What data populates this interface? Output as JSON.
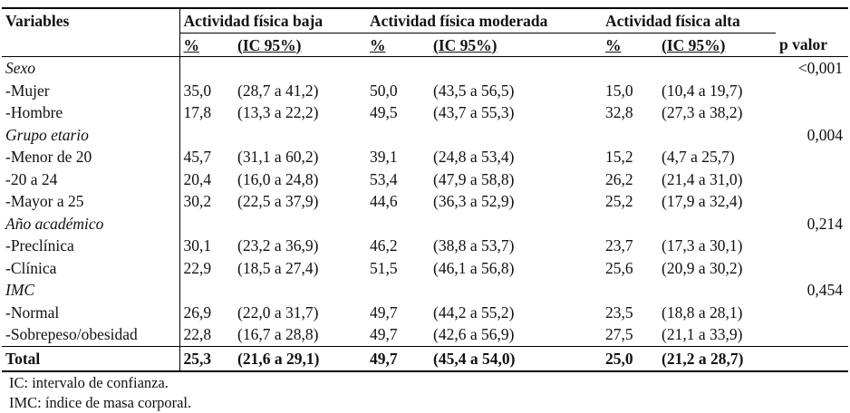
{
  "header": {
    "variables": "Variables",
    "groups": [
      "Actividad física baja",
      "Actividad física moderada",
      "Actividad física alta"
    ],
    "pct": "%",
    "ci": "(IC 95%)",
    "pvalue": "p valor"
  },
  "rows": [
    {
      "label": "Sexo",
      "type": "cat",
      "p": "<0,001"
    },
    {
      "label": "-Mujer",
      "type": "sub",
      "v": [
        "35,0",
        "(28,7 a 41,2)",
        "50,0",
        "(43,5 a 56,5)",
        "15,0",
        "(10,4 a 19,7)"
      ]
    },
    {
      "label": "-Hombre",
      "type": "sub",
      "v": [
        "17,8",
        "(13,3 a 22,2)",
        "49,5",
        "(43,7 a 55,3)",
        "32,8",
        "(27,3 a 38,2)"
      ]
    },
    {
      "label": "Grupo etario",
      "type": "cat",
      "p": "0,004"
    },
    {
      "label": "-Menor de 20",
      "type": "sub",
      "v": [
        "45,7",
        "(31,1 a 60,2)",
        "39,1",
        "(24,8 a 53,4)",
        "15,2",
        "(4,7 a 25,7)"
      ]
    },
    {
      "label": "-20 a 24",
      "type": "sub",
      "v": [
        "20,4",
        "(16,0 a 24,8)",
        "53,4",
        "(47,9 a 58,8)",
        "26,2",
        "(21,4 a 31,0)"
      ]
    },
    {
      "label": "-Mayor a 25",
      "type": "sub",
      "v": [
        "30,2",
        "(22,5 a 37,9)",
        "44,6",
        "(36,3 a 52,9)",
        "25,2",
        "(17,9 a 32,4)"
      ]
    },
    {
      "label": "Año académico",
      "type": "cat",
      "p": "0,214"
    },
    {
      "label": "-Preclínica",
      "type": "sub",
      "v": [
        "30,1",
        "(23,2 a 36,9)",
        "46,2",
        "(38,8 a 53,7)",
        "23,7",
        "(17,3 a 30,1)"
      ]
    },
    {
      "label": "-Clínica",
      "type": "sub",
      "v": [
        "22,9",
        "(18,5 a 27,4)",
        "51,5",
        "(46,1 a 56,8)",
        "25,6",
        "(20,9 a 30,2)"
      ]
    },
    {
      "label": "IMC",
      "type": "cat",
      "p": "0,454"
    },
    {
      "label": "-Normal",
      "type": "sub",
      "v": [
        "26,9",
        "(22,0 a 31,7)",
        "49,7",
        "(44,2 a 55,2)",
        "23,5",
        "(18,8 a 28,1)"
      ]
    },
    {
      "label": "-Sobrepeso/obesidad",
      "type": "sub",
      "v": [
        "22,8",
        "(16,7 a 28,8)",
        "49,7",
        "(42,6 a 56,9)",
        "27,5",
        "(21,1 a 33,9)"
      ]
    }
  ],
  "total": {
    "label": "Total",
    "v": [
      "25,3",
      "(21,6 a 29,1)",
      "49,7",
      "(45,4 a 54,0)",
      "25,0",
      "(21,2 a 28,7)"
    ]
  },
  "notes": [
    "IC: intervalo de confianza.",
    "IMC: índice de masa corporal."
  ]
}
